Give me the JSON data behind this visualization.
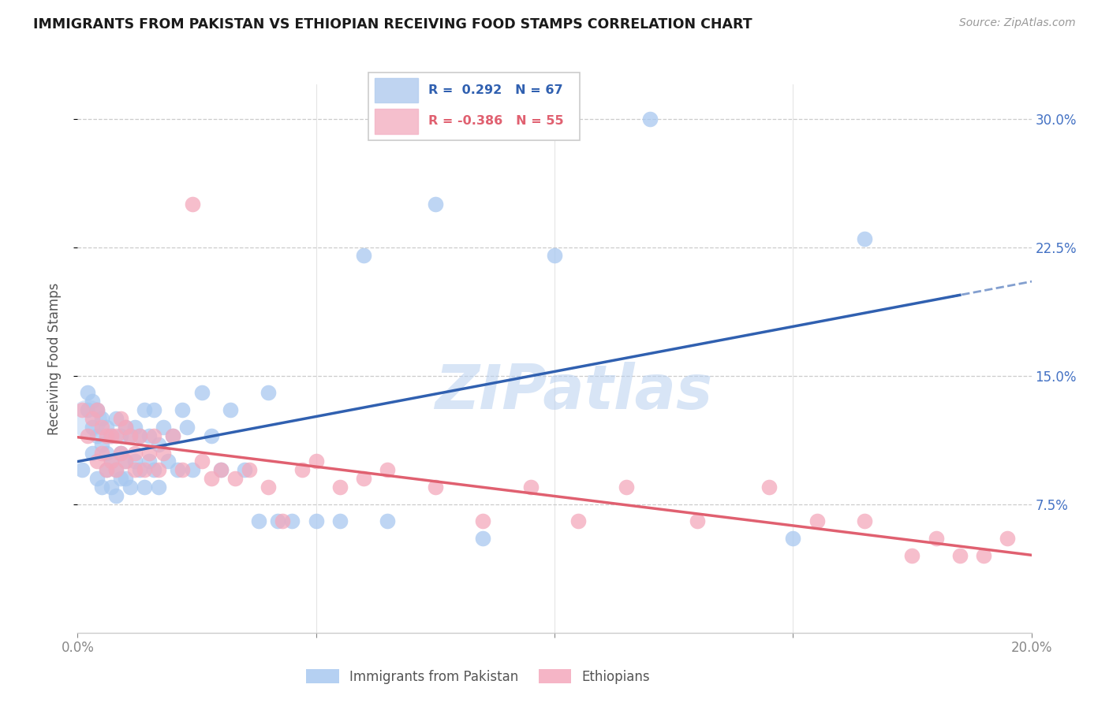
{
  "title": "IMMIGRANTS FROM PAKISTAN VS ETHIOPIAN RECEIVING FOOD STAMPS CORRELATION CHART",
  "source": "Source: ZipAtlas.com",
  "ylabel": "Receiving Food Stamps",
  "yticks": [
    0.075,
    0.15,
    0.225,
    0.3
  ],
  "ytick_labels": [
    "7.5%",
    "15.0%",
    "22.5%",
    "30.0%"
  ],
  "xlim": [
    0.0,
    0.2
  ],
  "ylim": [
    0.0,
    0.32
  ],
  "pakistan_color": "#a8c8f0",
  "ethiopia_color": "#f4a8bc",
  "pakistan_line_color": "#3060b0",
  "ethiopia_line_color": "#e06070",
  "pakistan_R": 0.292,
  "pakistan_N": 67,
  "ethiopia_R": -0.386,
  "ethiopia_N": 55,
  "watermark": "ZIPatlas",
  "pakistan_scatter_x": [
    0.001,
    0.002,
    0.002,
    0.003,
    0.003,
    0.003,
    0.004,
    0.004,
    0.004,
    0.005,
    0.005,
    0.005,
    0.006,
    0.006,
    0.006,
    0.007,
    0.007,
    0.007,
    0.008,
    0.008,
    0.008,
    0.009,
    0.009,
    0.009,
    0.01,
    0.01,
    0.01,
    0.011,
    0.011,
    0.012,
    0.012,
    0.013,
    0.013,
    0.014,
    0.014,
    0.015,
    0.015,
    0.016,
    0.016,
    0.017,
    0.017,
    0.018,
    0.019,
    0.02,
    0.021,
    0.022,
    0.023,
    0.024,
    0.026,
    0.028,
    0.03,
    0.032,
    0.035,
    0.038,
    0.04,
    0.042,
    0.045,
    0.05,
    0.055,
    0.06,
    0.065,
    0.075,
    0.085,
    0.1,
    0.12,
    0.15,
    0.165
  ],
  "pakistan_scatter_y": [
    0.095,
    0.13,
    0.14,
    0.105,
    0.12,
    0.135,
    0.09,
    0.115,
    0.13,
    0.085,
    0.11,
    0.125,
    0.095,
    0.105,
    0.12,
    0.085,
    0.1,
    0.115,
    0.08,
    0.095,
    0.125,
    0.09,
    0.105,
    0.115,
    0.09,
    0.1,
    0.12,
    0.085,
    0.115,
    0.1,
    0.12,
    0.095,
    0.115,
    0.085,
    0.13,
    0.1,
    0.115,
    0.095,
    0.13,
    0.085,
    0.11,
    0.12,
    0.1,
    0.115,
    0.095,
    0.13,
    0.12,
    0.095,
    0.14,
    0.115,
    0.095,
    0.13,
    0.095,
    0.065,
    0.14,
    0.065,
    0.065,
    0.065,
    0.065,
    0.22,
    0.065,
    0.25,
    0.055,
    0.22,
    0.3,
    0.055,
    0.23
  ],
  "ethiopia_scatter_x": [
    0.001,
    0.002,
    0.003,
    0.004,
    0.004,
    0.005,
    0.005,
    0.006,
    0.006,
    0.007,
    0.007,
    0.008,
    0.008,
    0.009,
    0.009,
    0.01,
    0.01,
    0.011,
    0.012,
    0.012,
    0.013,
    0.014,
    0.015,
    0.016,
    0.017,
    0.018,
    0.02,
    0.022,
    0.024,
    0.026,
    0.028,
    0.03,
    0.033,
    0.036,
    0.04,
    0.043,
    0.047,
    0.05,
    0.055,
    0.06,
    0.065,
    0.075,
    0.085,
    0.095,
    0.105,
    0.115,
    0.13,
    0.145,
    0.155,
    0.165,
    0.175,
    0.18,
    0.185,
    0.19,
    0.195
  ],
  "ethiopia_scatter_y": [
    0.13,
    0.115,
    0.125,
    0.13,
    0.1,
    0.12,
    0.105,
    0.115,
    0.095,
    0.115,
    0.1,
    0.115,
    0.095,
    0.125,
    0.105,
    0.12,
    0.1,
    0.115,
    0.105,
    0.095,
    0.115,
    0.095,
    0.105,
    0.115,
    0.095,
    0.105,
    0.115,
    0.095,
    0.25,
    0.1,
    0.09,
    0.095,
    0.09,
    0.095,
    0.085,
    0.065,
    0.095,
    0.1,
    0.085,
    0.09,
    0.095,
    0.085,
    0.065,
    0.085,
    0.065,
    0.085,
    0.065,
    0.085,
    0.065,
    0.065,
    0.045,
    0.055,
    0.045,
    0.045,
    0.055
  ]
}
